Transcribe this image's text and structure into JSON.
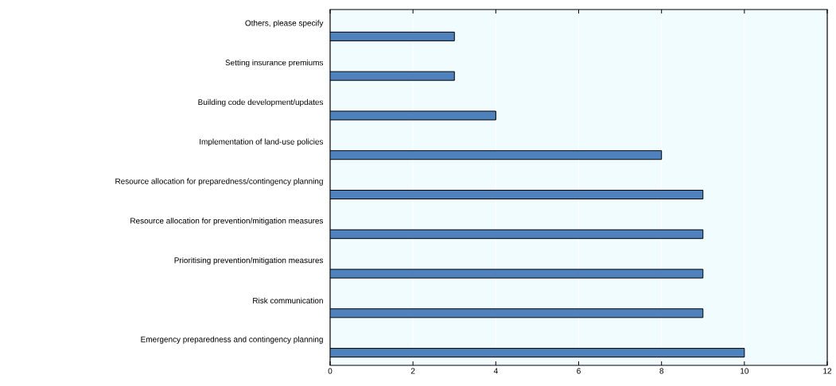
{
  "chart_data": {
    "type": "bar",
    "orientation": "horizontal",
    "categories": [
      "Others, please specify",
      "Setting insurance premiums",
      "Building code development/updates",
      "Implementation of land-use policies",
      "Resource allocation for preparedness/contingency planning",
      "Resource allocation for prevention/mitigation measures",
      "Prioritising prevention/mitigation measures",
      "Risk communication",
      "Emergency preparedness and contingency planning"
    ],
    "values": [
      3,
      3,
      4,
      8,
      9,
      9,
      9,
      9,
      10
    ],
    "color": "#4f81bd",
    "xlim": [
      0,
      12
    ],
    "xticks": [
      0,
      2,
      4,
      6,
      8,
      10,
      12
    ],
    "grid": "x"
  }
}
